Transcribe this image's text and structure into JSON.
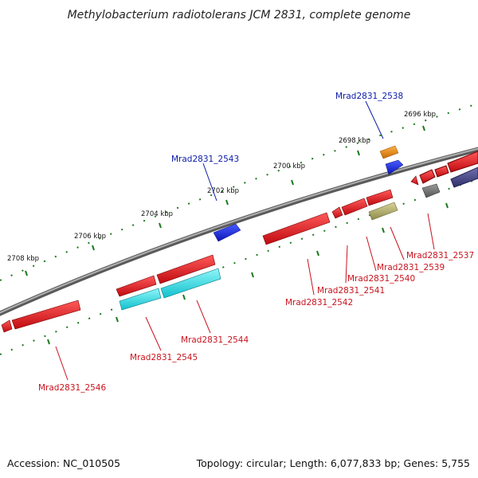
{
  "title": "Methylobacterium radiotolerans JCM 2831, complete genome",
  "footer": {
    "accession": "Accession: NC_010505",
    "summary": "Topology: circular; Length: 6,077,833 bp; Genes: 5,755"
  },
  "colors": {
    "backbone": "#8a8a8a",
    "ticks": "#1f7a1f",
    "forward_label": "#0a1aa8",
    "reverse_label": "#c8141e",
    "gene_red": "#e31a1c",
    "gene_cyan": "#22e0e8",
    "gene_blue": "#1a2de6",
    "gene_orange": "#f08a0a",
    "gene_olive": "#b8b46a",
    "gene_gray": "#7a7a7a",
    "gene_slate": "#4a4a8a"
  },
  "scale_labels": [
    "2696 kbp",
    "2698 kbp",
    "2700 kbp",
    "2702 kbp",
    "2704 kbp",
    "2706 kbp",
    "2708 kbp"
  ],
  "gene_labels": [
    {
      "name": "Mrad2831_2538",
      "strand": "forward"
    },
    {
      "name": "Mrad2831_2543",
      "strand": "forward"
    },
    {
      "name": "Mrad2831_2537",
      "strand": "reverse"
    },
    {
      "name": "Mrad2831_2539",
      "strand": "reverse"
    },
    {
      "name": "Mrad2831_2540",
      "strand": "reverse"
    },
    {
      "name": "Mrad2831_2541",
      "strand": "reverse"
    },
    {
      "name": "Mrad2831_2542",
      "strand": "reverse"
    },
    {
      "name": "Mrad2831_2544",
      "strand": "reverse"
    },
    {
      "name": "Mrad2831_2545",
      "strand": "reverse"
    },
    {
      "name": "Mrad2831_2546",
      "strand": "reverse"
    }
  ]
}
